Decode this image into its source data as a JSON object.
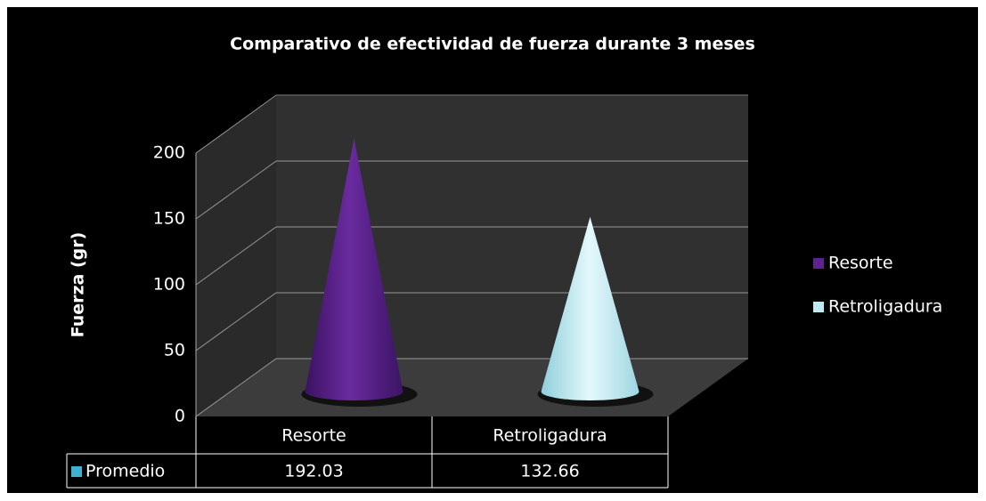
{
  "chart_data": {
    "type": "cone3d",
    "title": "Comparativo de efectividad de fuerza durante 3 meses",
    "y_label": "Fuerza (gr)",
    "categories": [
      "Resorte",
      "Retroligadura"
    ],
    "series": [
      {
        "name": "Promedio",
        "color": "#3fb0d0",
        "values": [
          192.03,
          132.66
        ]
      }
    ],
    "colors": [
      "#5e2390",
      "#bfeaf0"
    ],
    "ylim": [
      0,
      200
    ],
    "yticks": [
      0,
      50,
      100,
      150,
      200
    ],
    "grid": true,
    "legend": "right"
  }
}
